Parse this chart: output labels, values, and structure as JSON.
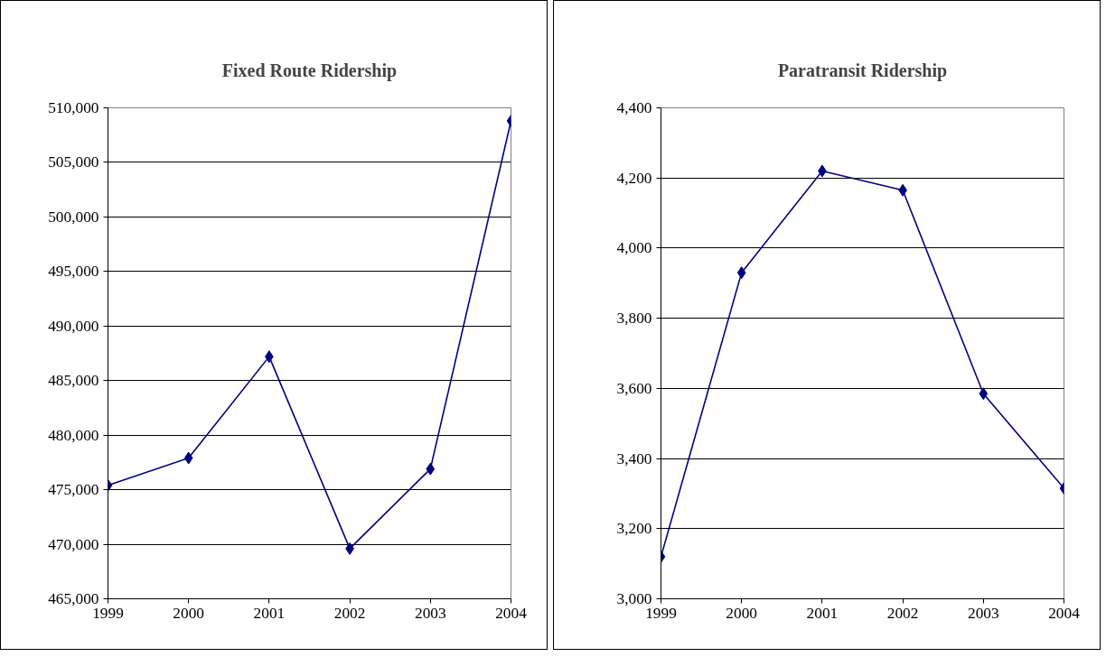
{
  "chart_data": [
    {
      "type": "line",
      "title": "Fixed Route Ridership",
      "x": [
        1999,
        2000,
        2001,
        2002,
        2003,
        2004
      ],
      "series": [
        {
          "color": "#000080",
          "values": [
            475400,
            477900,
            487200,
            469600,
            476900,
            508800
          ]
        }
      ],
      "xlim": [
        1999,
        2004
      ],
      "xticks": [
        1999,
        2000,
        2001,
        2002,
        2003,
        2004
      ],
      "ylim": [
        465000,
        510000
      ],
      "yticks": [
        {
          "value": 465000,
          "label": "465,000"
        },
        {
          "value": 470000,
          "label": "470,000"
        },
        {
          "value": 475000,
          "label": "475,000"
        },
        {
          "value": 480000,
          "label": "480,000"
        },
        {
          "value": 485000,
          "label": "485,000"
        },
        {
          "value": 490000,
          "label": "490,000"
        },
        {
          "value": 495000,
          "label": "495,000"
        },
        {
          "value": 500000,
          "label": "500,000"
        },
        {
          "value": 505000,
          "label": "505,000"
        },
        {
          "value": 510000,
          "label": "510,000"
        }
      ],
      "grid": "y",
      "marker": "diamond",
      "line_style": "solid"
    },
    {
      "type": "line",
      "title": "Paratransit Ridership",
      "x": [
        1999,
        2000,
        2001,
        2002,
        2003,
        2004
      ],
      "series": [
        {
          "color": "#000080",
          "values": [
            3120,
            3930,
            4220,
            4165,
            3585,
            3315
          ]
        }
      ],
      "xlim": [
        1999,
        2004
      ],
      "xticks": [
        1999,
        2000,
        2001,
        2002,
        2003,
        2004
      ],
      "ylim": [
        3000,
        4400
      ],
      "yticks": [
        {
          "value": 3000,
          "label": "3,000"
        },
        {
          "value": 3200,
          "label": "3,200"
        },
        {
          "value": 3400,
          "label": "3,400"
        },
        {
          "value": 3600,
          "label": "3,600"
        },
        {
          "value": 3800,
          "label": "3,800"
        },
        {
          "value": 4000,
          "label": "4,000"
        },
        {
          "value": 4200,
          "label": "4,200"
        },
        {
          "value": 4400,
          "label": "4,400"
        }
      ],
      "grid": "y",
      "marker": "diamond",
      "line_style": "solid"
    }
  ]
}
